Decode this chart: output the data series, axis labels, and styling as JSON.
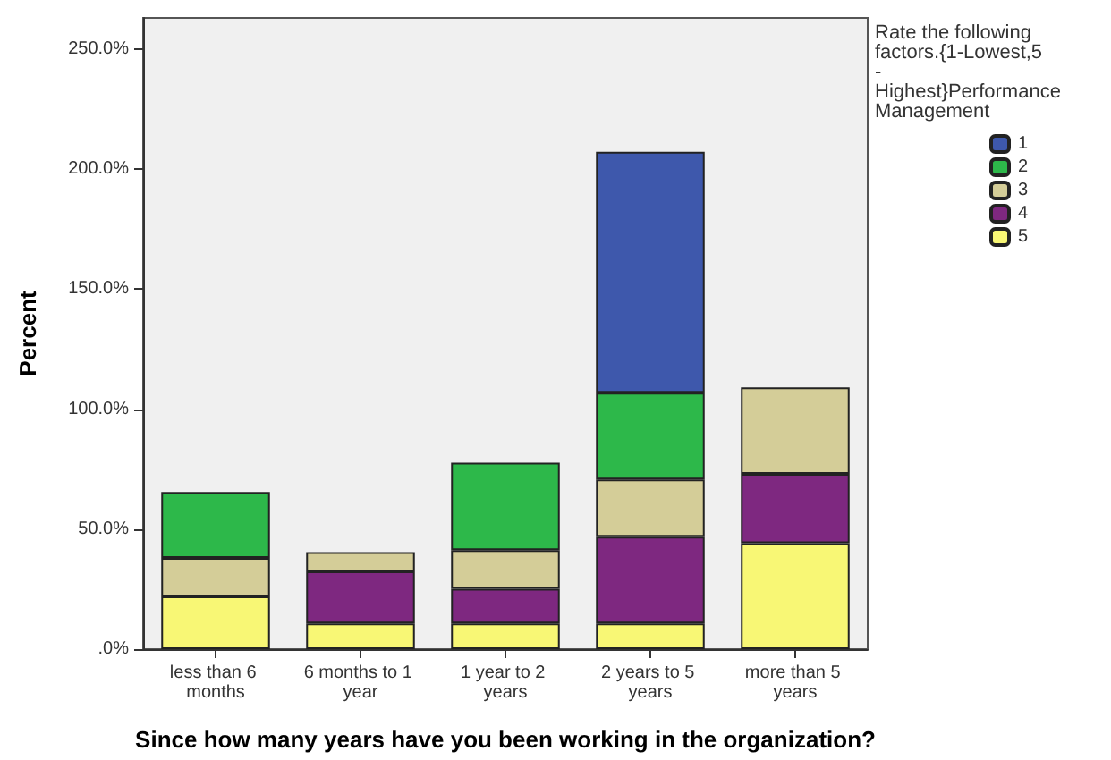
{
  "chart_data": {
    "type": "bar",
    "stacked": true,
    "xlabel": "Since how many years have you been working in the organization?",
    "ylabel": "Percent",
    "legend_title": "Rate the following factors.{1-Lowest,5 - Highest}Performance Management",
    "legend": "top right",
    "categories": [
      "less than 6 months",
      "6 months to 1 year",
      "1 year to 2 years",
      "2 years to 5 years",
      "more than 5 years"
    ],
    "series": [
      {
        "name": "5",
        "color": "#f8f775",
        "values": [
          22.0,
          10.7,
          10.7,
          10.7,
          44.1
        ]
      },
      {
        "name": "4",
        "color": "#7e2880",
        "values": [
          null,
          21.7,
          14.4,
          36.1,
          28.9
        ]
      },
      {
        "name": "3",
        "color": "#d4cd98",
        "values": [
          16.0,
          8.0,
          16.2,
          23.9,
          36.1
        ]
      },
      {
        "name": "2",
        "color": "#2db84a",
        "values": [
          27.5,
          null,
          36.4,
          36.1,
          null
        ]
      },
      {
        "name": "1",
        "color": "#3e58ac",
        "values": [
          null,
          null,
          null,
          100.4,
          null
        ]
      }
    ],
    "ylim": [
      0,
      263
    ],
    "yticks": [
      {
        "value": 0,
        "label": ".0%"
      },
      {
        "value": 50,
        "label": "50.0%"
      },
      {
        "value": 100,
        "label": "100.0%"
      },
      {
        "value": 150,
        "label": "150.0%"
      },
      {
        "value": 200,
        "label": "200.0%"
      },
      {
        "value": 250,
        "label": "250.0%"
      }
    ],
    "grid": false
  }
}
